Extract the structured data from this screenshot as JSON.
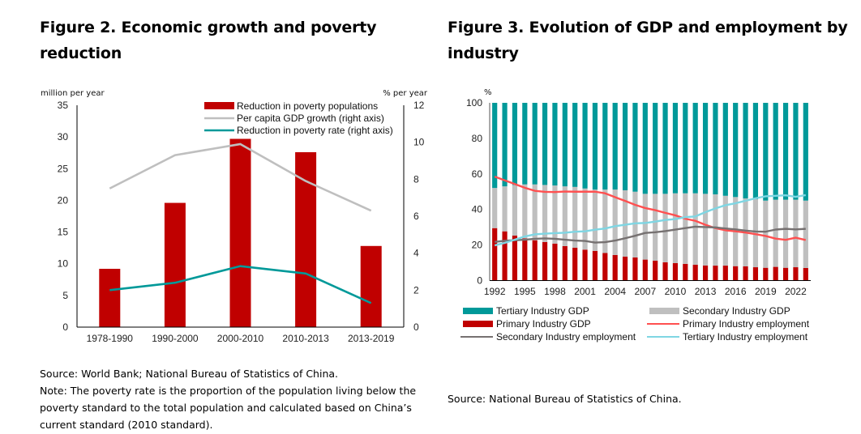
{
  "figure2": {
    "title": "Figure 2. Economic growth and poverty reduction",
    "source": "Source: World Bank; National Bureau of Statistics of China.",
    "note": "Note: The poverty rate is the proportion of the population living below the poverty standard to the total population and calculated based on China’s current standard (2010 standard)."
  },
  "figure3": {
    "title": "Figure 3. Evolution of GDP and employment by industry",
    "source": "Source: National Bureau of Statistics of China."
  },
  "chart_data": [
    {
      "type": "bar",
      "title": "Figure 2. Economic growth and poverty reduction",
      "categories": [
        "1978-1990",
        "1990-2000",
        "2000-2010",
        "2010-2013",
        "2013-2019"
      ],
      "ylabel": "million per year",
      "ylabel_right": "% per year",
      "ylim": [
        0,
        35
      ],
      "yticks": [
        0,
        5,
        10,
        15,
        20,
        25,
        30,
        35
      ],
      "ylim_right": [
        0,
        12
      ],
      "yticks_right": [
        0,
        2,
        4,
        6,
        8,
        10,
        12
      ],
      "grid": false,
      "legend_position": "top-right",
      "series": [
        {
          "name": "Reduction in poverty populations",
          "kind": "bar",
          "axis": "left",
          "color": "#C00000",
          "values": [
            9.2,
            19.6,
            29.7,
            27.6,
            12.8
          ]
        },
        {
          "name": "Per capita GDP growth (right axis)",
          "kind": "line",
          "axis": "right",
          "color": "#BFBFBF",
          "values": [
            7.5,
            9.3,
            9.9,
            7.9,
            6.3
          ]
        },
        {
          "name": "Reduction in poverty rate (right axis)",
          "kind": "line",
          "axis": "right",
          "color": "#009999",
          "values": [
            2.0,
            2.4,
            3.3,
            2.9,
            1.3
          ]
        }
      ]
    },
    {
      "type": "bar",
      "stacked": true,
      "title": "Figure 3. Evolution of GDP and employment by industry",
      "ylabel": "%",
      "ylim": [
        0,
        100
      ],
      "yticks": [
        0,
        20,
        40,
        60,
        80,
        100
      ],
      "x": [
        1992,
        1993,
        1994,
        1995,
        1996,
        1997,
        1998,
        1999,
        2000,
        2001,
        2002,
        2003,
        2004,
        2005,
        2006,
        2007,
        2008,
        2009,
        2010,
        2011,
        2012,
        2013,
        2014,
        2015,
        2016,
        2017,
        2018,
        2019,
        2020,
        2021,
        2022,
        2023
      ],
      "xticks": [
        "1992",
        "1995",
        "1998",
        "2001",
        "2004",
        "2007",
        "2010",
        "2013",
        "2016",
        "2019",
        "2022"
      ],
      "grid": false,
      "legend_position": "bottom",
      "series": [
        {
          "name": "Primary Industry GDP",
          "kind": "bar",
          "color": "#C00000",
          "values": [
            29.5,
            27.7,
            25.3,
            23.8,
            22.7,
            21.7,
            20.8,
            19.4,
            18.5,
            17.4,
            16.7,
            15.5,
            14.4,
            13.5,
            13.0,
            11.8,
            11.2,
            10.3,
            9.8,
            9.4,
            8.9,
            8.5,
            8.4,
            8.4,
            8.1,
            8.0,
            7.5,
            7.2,
            7.7,
            7.2,
            7.5,
            7.1
          ]
        },
        {
          "name": "Secondary Industry GDP",
          "kind": "bar",
          "color": "#BFBFBF",
          "values": [
            22.6,
            25.3,
            28.5,
            30.3,
            31.4,
            32.1,
            32.7,
            33.6,
            34.2,
            34.4,
            34.5,
            35.7,
            36.8,
            37.3,
            37.0,
            37.0,
            37.6,
            38.5,
            39.3,
            39.7,
            40.2,
            40.3,
            40.1,
            39.3,
            38.9,
            38.2,
            38.3,
            37.8,
            37.8,
            38.3,
            38.0,
            37.9
          ]
        },
        {
          "name": "Tertiary Industry GDP",
          "kind": "bar",
          "color": "#009999",
          "values": [
            47.9,
            47.0,
            46.2,
            45.9,
            45.9,
            46.2,
            46.5,
            47.0,
            47.3,
            48.2,
            48.8,
            48.8,
            48.8,
            49.2,
            50.0,
            51.2,
            51.2,
            51.2,
            50.9,
            50.9,
            50.9,
            51.2,
            51.5,
            52.3,
            53.0,
            53.8,
            54.2,
            55.0,
            54.5,
            54.5,
            54.5,
            55.0
          ]
        },
        {
          "name": "Primary Industry employment",
          "kind": "line",
          "color": "#FF5050",
          "values": [
            58.5,
            56.4,
            54.3,
            52.2,
            50.5,
            49.9,
            49.8,
            50.1,
            50.0,
            50.0,
            50.0,
            49.1,
            46.9,
            44.8,
            42.6,
            40.8,
            39.6,
            38.1,
            36.7,
            34.8,
            33.6,
            31.4,
            29.5,
            28.3,
            27.7,
            27.0,
            26.1,
            25.1,
            23.6,
            22.9,
            24.1,
            22.8
          ]
        },
        {
          "name": "Secondary Industry employment",
          "kind": "line",
          "color": "#767171",
          "values": [
            21.7,
            22.4,
            22.7,
            23.0,
            23.5,
            23.7,
            23.5,
            23.0,
            22.5,
            22.3,
            21.4,
            21.6,
            22.5,
            23.8,
            25.2,
            26.8,
            27.2,
            27.8,
            28.7,
            29.5,
            30.3,
            30.1,
            29.9,
            29.3,
            28.8,
            28.1,
            27.6,
            27.5,
            28.7,
            29.1,
            28.8,
            29.1
          ]
        },
        {
          "name": "Tertiary Industry employment",
          "kind": "line",
          "color": "#7FD6E3",
          "values": [
            19.8,
            21.2,
            23.0,
            24.8,
            26.0,
            26.4,
            26.7,
            26.9,
            27.5,
            27.7,
            28.6,
            29.3,
            30.6,
            31.4,
            32.2,
            32.4,
            33.2,
            34.1,
            34.6,
            35.7,
            36.1,
            38.5,
            40.6,
            42.4,
            43.5,
            44.9,
            46.3,
            47.4,
            47.7,
            48.0,
            47.1,
            48.1
          ]
        }
      ],
      "legend_order": [
        "Tertiary Industry GDP",
        "Secondary Industry GDP",
        "Primary Industry GDP",
        "Primary Industry employment",
        "Secondary Industry employment",
        "Tertiary Industry employment"
      ]
    }
  ]
}
